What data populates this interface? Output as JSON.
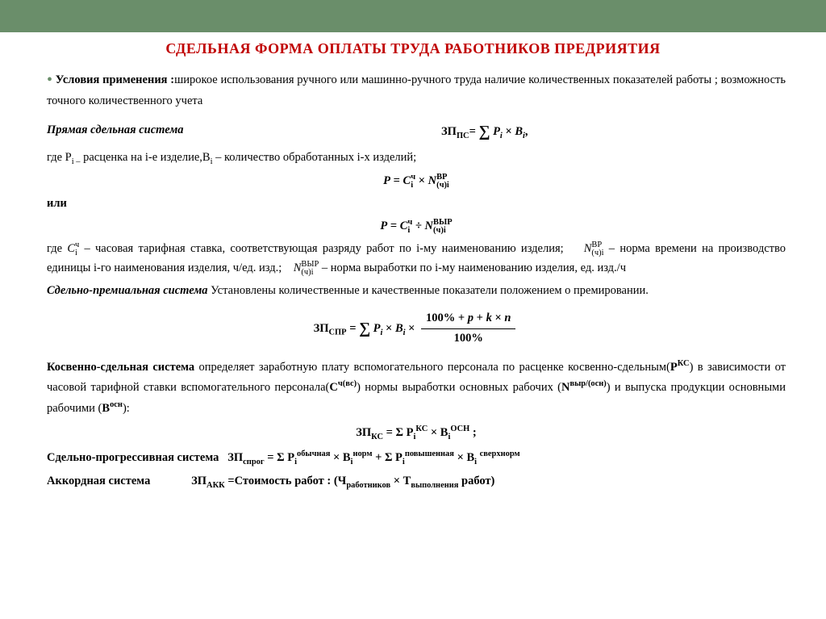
{
  "colors": {
    "header_bg": "#6a8e6a",
    "title_color": "#c00000",
    "text_color": "#000000",
    "bg": "#ffffff"
  },
  "typography": {
    "family": "Times New Roman",
    "body_size_pt": 11,
    "title_size_pt": 14,
    "title_weight": "bold"
  },
  "title": "СДЕЛЬНАЯ ФОРМА ОПЛАТЫ ТРУДА РАБОТНИКОВ ПРЕДРИЯТИЯ",
  "cond_bold": "Условия применения :",
  "cond_rest": "широкое использования ручного или машинно-ручного труда наличие количественных показателей работы ; возможность точного количественного учета",
  "sys1_label": "Прямая сдельная система",
  "sys1_formula_html": "ЗП<sub>ПС</sub>= <span class='sigma'>∑</span> <i>P<sub>i</sub></i> × <i>B<sub>i</sub></i>,",
  "sys1_where_html": "где P<sub>i –</sub> расценка на i-е изделие,B<sub>i</sub> – количество обработанных i-х изделий;",
  "p_formula1_html": "<b><i>P</i></b> = <i>C</i><span class='supsub'><span>ч</span><span>i</span></span> × <i>N</i><span class='supsub'><span>ВР</span><span>(ч)i</span></span>",
  "or_text": "или",
  "p_formula2_html": "<b><i>P</i></b> = <i>C</i><span class='supsub'><span>ч</span><span>i</span></span> ÷ <i>N</i><span class='supsub'><span>ВЫР</span><span>(ч)i</span></span>",
  "p_where_html": "где <i>C</i><span class='supsub'><span>ч</span><span>i</span></span> – часовая тарифная ставка, соответствующая разряду работ по i-му наименованию изделия; &nbsp;&nbsp; <i>N</i><span class='supsub'><span>ВР</span><span>(ч)i</span></span> – норма времени на производство единицы i-го наименования изделия, ч/ед. изд.; &nbsp;&nbsp; <i>N</i><span class='supsub'><span>ВЫР</span><span>(ч)i</span></span> – норма выработки по i-му наименованию изделия, ед. изд./ч",
  "sys2_text": "Установлены количественные и качественные показатели положением о премировании.",
  "sys2_label": "Сдельно-премиальная система",
  "sys2_formula_html": "ЗП<sub>СПР</sub> = <span class='sigma'>∑</span> <i>P<sub>i</sub></i> × <i>B<sub>i</sub></i> × <span class='frac'><span class='num'><b>100% + <i>p</i> + <i>k</i> × <i>n</i></b></span><span class='den'><b>100%</b></span></span>",
  "sys3_html": "<span class='bold'>Косвенно-сдельная система</span> определяет заработную плату вспомогательного персонала по расценке косвенно-сдельным(<b>Р<sup>КС</sup></b>) в зависимости от часовой тарифной ставки вспомогательного персонала(<b>С<sup>ч(вс)</sup></b>) нормы выработки основных рабочих (<b>N<sup>выр/(осн)</sup></b>) и выпуска продукции основными рабочими (<b>В<sup>осн</sup></b>):",
  "sys3_formula_html": "<b>ЗП<sub>КС</sub> = Σ P<sub>i</sub><sup>КС</sup> × B<sub>i</sub><sup>ОСН</sup> ;</b>",
  "sys4_html": "<span class='bold'>Сдельно-прогрессивная система</span>&nbsp;&nbsp; <b>ЗП<sub>спрог</sub> = Σ Р<sub>i</sub><sup>обычная</sup> × B<sub>i</sub><sup>норм</sup> + Σ Р<sub>i</sub><sup>повышенная</sup> × B<sub>i</sub> <sup>сверхнорм</sup></b>",
  "sys5_html": "<span class='bold'>Аккордная система</span> &nbsp;&nbsp;&nbsp;&nbsp;&nbsp;&nbsp;&nbsp;&nbsp;&nbsp;&nbsp;&nbsp;&nbsp; <b>ЗП<sub>АКК</sub> =Стоимость работ : (Ч<sub>работников</sub> × Т<sub>выполнения</sub> работ)</b>"
}
